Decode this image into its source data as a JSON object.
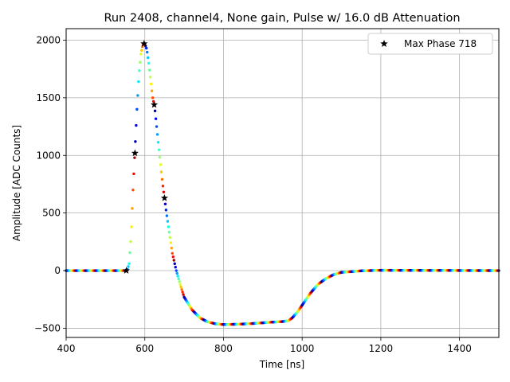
{
  "chart_data": {
    "type": "scatter",
    "title": "Run 2408, channel4, None gain, Pulse w/ 16.0 dB Attenuation",
    "xlabel": "Time [ns]",
    "ylabel": "Amplitude [ADC Counts]",
    "xlim": [
      400,
      1500
    ],
    "ylim": [
      -580,
      2100
    ],
    "xticks": [
      400,
      600,
      800,
      1000,
      1200,
      1400
    ],
    "yticks": [
      -500,
      0,
      500,
      1000,
      1500,
      2000
    ],
    "xtick_labels": [
      "400",
      "600",
      "800",
      "1000",
      "1200",
      "1400"
    ],
    "ytick_labels": [
      "−500",
      "0",
      "500",
      "1000",
      "1500",
      "2000"
    ],
    "grid": true,
    "legend": {
      "position": "top-right",
      "label": "Max Phase 718",
      "marker": "star",
      "color": "#000000"
    },
    "colormap": "jet",
    "curve_points": [
      [
        400,
        0
      ],
      [
        550,
        0
      ],
      [
        556,
        10
      ],
      [
        560,
        60
      ],
      [
        565,
        300
      ],
      [
        570,
        700
      ],
      [
        575,
        1050
      ],
      [
        580,
        1400
      ],
      [
        585,
        1700
      ],
      [
        590,
        1880
      ],
      [
        595,
        1960
      ],
      [
        600,
        1970
      ],
      [
        605,
        1920
      ],
      [
        610,
        1800
      ],
      [
        615,
        1650
      ],
      [
        620,
        1500
      ],
      [
        625,
        1420
      ],
      [
        630,
        1250
      ],
      [
        635,
        1080
      ],
      [
        640,
        920
      ],
      [
        645,
        760
      ],
      [
        650,
        630
      ],
      [
        655,
        500
      ],
      [
        660,
        380
      ],
      [
        670,
        150
      ],
      [
        680,
        0
      ],
      [
        690,
        -120
      ],
      [
        700,
        -230
      ],
      [
        720,
        -340
      ],
      [
        740,
        -410
      ],
      [
        760,
        -445
      ],
      [
        780,
        -462
      ],
      [
        800,
        -468
      ],
      [
        840,
        -465
      ],
      [
        880,
        -458
      ],
      [
        920,
        -448
      ],
      [
        950,
        -442
      ],
      [
        965,
        -435
      ],
      [
        975,
        -410
      ],
      [
        990,
        -350
      ],
      [
        1000,
        -300
      ],
      [
        1020,
        -200
      ],
      [
        1040,
        -120
      ],
      [
        1060,
        -70
      ],
      [
        1080,
        -35
      ],
      [
        1100,
        -15
      ],
      [
        1150,
        -2
      ],
      [
        1200,
        3
      ],
      [
        1300,
        2
      ],
      [
        1500,
        0
      ]
    ],
    "phase_markers": [
      {
        "x": 553,
        "y": 0
      },
      {
        "x": 575,
        "y": 1020
      },
      {
        "x": 598,
        "y": 1970
      },
      {
        "x": 624,
        "y": 1440
      },
      {
        "x": 650,
        "y": 630
      }
    ]
  }
}
